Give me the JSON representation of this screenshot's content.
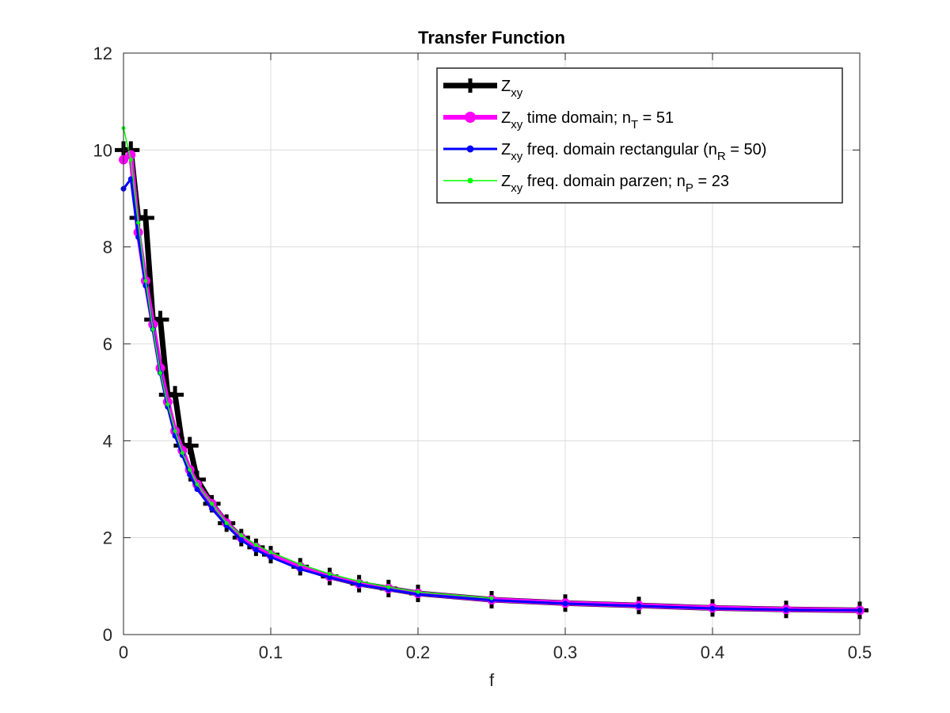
{
  "chart_data": {
    "type": "line",
    "title": "Transfer Function",
    "xlabel": "f",
    "ylabel": "",
    "xlim": [
      0,
      0.5
    ],
    "ylim": [
      0,
      12
    ],
    "xticks": [
      0,
      0.1,
      0.2,
      0.3,
      0.4,
      0.5
    ],
    "xtick_labels": [
      "0",
      "0.1",
      "0.2",
      "0.3",
      "0.4",
      "0.5"
    ],
    "yticks": [
      0,
      2,
      4,
      6,
      8,
      10,
      12
    ],
    "ytick_labels": [
      "0",
      "2",
      "4",
      "6",
      "8",
      "10",
      "12"
    ],
    "grid": true,
    "legend_position": "top-right",
    "series": [
      {
        "name": "Z_xy",
        "legend": {
          "base": "Z",
          "sub": "xy",
          "text": "",
          "sub2": "",
          "tail": ""
        },
        "color": "#000000",
        "marker": "plus",
        "x": [
          0,
          0.005,
          0.01,
          0.015,
          0.02,
          0.025,
          0.03,
          0.035,
          0.04,
          0.045,
          0.05,
          0.06,
          0.07,
          0.08,
          0.09,
          0.1,
          0.12,
          0.14,
          0.16,
          0.18,
          0.2,
          0.25,
          0.3,
          0.35,
          0.4,
          0.45,
          0.5
        ],
        "y": [
          10.0,
          10.0,
          8.6,
          8.6,
          6.5,
          6.5,
          4.95,
          4.95,
          3.9,
          3.9,
          3.2,
          2.7,
          2.3,
          2.0,
          1.8,
          1.65,
          1.4,
          1.2,
          1.05,
          0.95,
          0.85,
          0.72,
          0.65,
          0.6,
          0.55,
          0.52,
          0.5
        ]
      },
      {
        "name": "Z_xy time domain; n_T = 51",
        "legend": {
          "base": "Z",
          "sub": "xy",
          "text": " time domain; n",
          "sub2": "T",
          "tail": " = 51"
        },
        "color": "#ff00ff",
        "marker": "circle",
        "x": [
          0,
          0.005,
          0.01,
          0.015,
          0.02,
          0.025,
          0.03,
          0.035,
          0.04,
          0.045,
          0.05,
          0.06,
          0.07,
          0.08,
          0.09,
          0.1,
          0.12,
          0.14,
          0.16,
          0.18,
          0.2,
          0.25,
          0.3,
          0.35,
          0.4,
          0.45,
          0.5
        ],
        "y": [
          9.8,
          9.9,
          8.3,
          7.3,
          6.4,
          5.5,
          4.8,
          4.2,
          3.8,
          3.4,
          3.1,
          2.7,
          2.3,
          2.0,
          1.8,
          1.65,
          1.4,
          1.2,
          1.05,
          0.95,
          0.85,
          0.72,
          0.65,
          0.6,
          0.55,
          0.52,
          0.5
        ]
      },
      {
        "name": "Z_xy freq. domain rectangular (n_R = 50)",
        "legend": {
          "base": "Z",
          "sub": "xy",
          "text": " freq. domain rectangular (n",
          "sub2": "R",
          "tail": " = 50)"
        },
        "color": "#0000ff",
        "marker": "dot",
        "x": [
          0,
          0.005,
          0.01,
          0.015,
          0.02,
          0.025,
          0.03,
          0.035,
          0.04,
          0.045,
          0.05,
          0.06,
          0.07,
          0.08,
          0.09,
          0.1,
          0.12,
          0.14,
          0.16,
          0.18,
          0.2,
          0.25,
          0.3,
          0.35,
          0.4,
          0.45,
          0.5
        ],
        "y": [
          9.2,
          9.4,
          8.2,
          7.2,
          6.3,
          5.4,
          4.7,
          4.1,
          3.7,
          3.3,
          3.0,
          2.6,
          2.25,
          1.95,
          1.75,
          1.6,
          1.35,
          1.18,
          1.03,
          0.93,
          0.83,
          0.71,
          0.64,
          0.59,
          0.54,
          0.51,
          0.5
        ]
      },
      {
        "name": "Z_xy freq. domain parzen; n_P = 23",
        "legend": {
          "base": "Z",
          "sub": "xy",
          "text": " freq. domain parzen; n",
          "sub2": "P",
          "tail": " = 23"
        },
        "color": "#00ff00",
        "marker": "dot",
        "x": [
          0,
          0.005,
          0.01,
          0.015,
          0.02,
          0.025,
          0.03,
          0.035,
          0.04,
          0.045,
          0.05,
          0.06,
          0.07,
          0.08,
          0.09,
          0.1,
          0.12,
          0.14,
          0.16,
          0.18,
          0.2,
          0.25
        ],
        "y": [
          10.45,
          9.8,
          8.5,
          7.3,
          6.3,
          5.4,
          4.75,
          4.2,
          3.75,
          3.4,
          3.1,
          2.7,
          2.3,
          2.05,
          1.85,
          1.7,
          1.45,
          1.25,
          1.1,
          0.98,
          0.88,
          0.75
        ]
      }
    ]
  }
}
